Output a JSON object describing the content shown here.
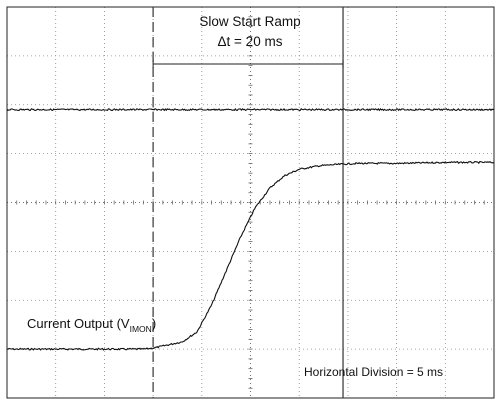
{
  "chart_data": {
    "type": "line",
    "title": "",
    "xlabel": "",
    "ylabel": "",
    "grid": true,
    "annotations": {
      "ramp_title": "Slow Start Ramp",
      "ramp_dt": "Δt = 20 ms",
      "trace_label_main": "Current Output (V",
      "trace_label_sub": "IMON",
      "trace_label_close": ")",
      "horizontal_division": "Horizontal Division = 5 ms"
    },
    "x_unit": "ms",
    "x_per_division": 5,
    "xlim": [
      0,
      50
    ],
    "ylim": [
      0,
      8
    ],
    "cursors_ms": [
      15,
      34.5
    ],
    "series": [
      {
        "x": [
          0,
          14,
          15,
          18,
          19.5,
          21,
          22.5,
          24,
          25.5,
          27,
          28.5,
          30,
          32,
          34,
          36,
          40,
          45,
          50
        ],
        "values": [
          1.0,
          1.0,
          1.02,
          1.15,
          1.35,
          1.9,
          2.6,
          3.3,
          3.9,
          4.3,
          4.55,
          4.68,
          4.75,
          4.78,
          4.8,
          4.8,
          4.82,
          4.82
        ]
      },
      {
        "x": [
          0,
          50
        ],
        "values": [
          5.9,
          5.9
        ]
      }
    ]
  }
}
